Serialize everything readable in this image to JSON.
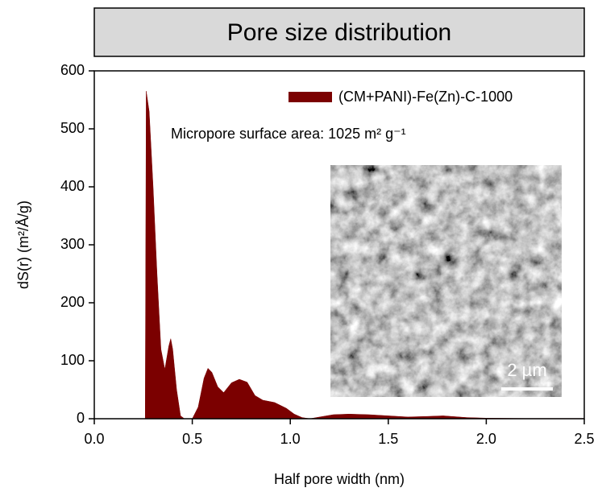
{
  "chart_data": {
    "type": "area",
    "title": "Pore size distribution",
    "xlabel": "Half pore width (nm)",
    "ylabel": "dS(r) (m²/Å/g)",
    "annotation": "Micropore surface area: 1025 m² g⁻¹",
    "inset_label": "2 µm",
    "x": [
      0.26,
      0.265,
      0.28,
      0.3,
      0.32,
      0.34,
      0.36,
      0.38,
      0.39,
      0.4,
      0.42,
      0.44,
      0.46,
      0.5,
      0.53,
      0.56,
      0.58,
      0.6,
      0.63,
      0.66,
      0.7,
      0.74,
      0.78,
      0.82,
      0.86,
      0.92,
      0.98,
      1.02,
      1.06,
      1.1,
      1.15,
      1.22,
      1.3,
      1.4,
      1.5,
      1.6,
      1.7,
      1.78,
      1.9,
      2.0,
      2.2,
      2.5
    ],
    "series": [
      {
        "name": "(CM+PANI)-Fe(Zn)-C-1000",
        "color": "#7b0000",
        "values": [
          0,
          565,
          530,
          400,
          250,
          120,
          85,
          125,
          138,
          120,
          50,
          5,
          0,
          0,
          20,
          70,
          87,
          80,
          55,
          45,
          62,
          68,
          63,
          40,
          32,
          28,
          18,
          8,
          2,
          0,
          3,
          7,
          8,
          7,
          5,
          3,
          4,
          5,
          2,
          1,
          0.5,
          0.5
        ]
      }
    ],
    "xlim": [
      0,
      2.5
    ],
    "ylim": [
      0,
      600
    ],
    "xticks": [
      {
        "value": 0,
        "label": "0.0"
      },
      0.5,
      {
        "value": 1,
        "label": "1.0"
      },
      1.5,
      {
        "value": 2,
        "label": "2.0"
      },
      2.5
    ],
    "yticks": [
      0,
      100,
      200,
      300,
      400,
      500,
      600
    ],
    "legend": "upper right"
  }
}
